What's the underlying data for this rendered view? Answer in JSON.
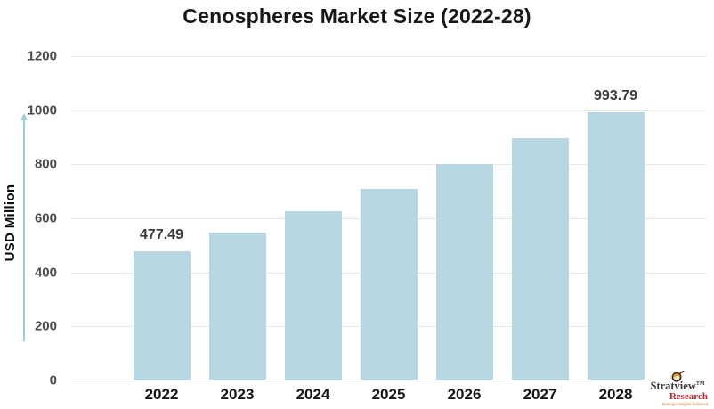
{
  "title": "Cenospheres Market Size (2022-28)",
  "chart_data": {
    "type": "bar",
    "title": "Cenospheres Market Size (2022-28)",
    "categories": [
      "2022",
      "2023",
      "2024",
      "2025",
      "2026",
      "2027",
      "2028"
    ],
    "values": [
      477.49,
      546,
      625,
      710,
      800,
      896,
      993.79
    ],
    "data_labels": [
      "477.49",
      "",
      "",
      "",
      "",
      "",
      "993.79"
    ],
    "xlabel": "",
    "ylabel": "USD Million",
    "ylim": [
      0,
      1200
    ],
    "yticks": [
      0,
      200,
      400,
      600,
      800,
      1000,
      1200
    ],
    "grid": true,
    "legend": "none",
    "colors": {
      "bar": "#b7d7e3",
      "gridline": "#e7e7e7",
      "baseline": "#d6d6d6",
      "arrow": "#9fc9dc",
      "tick_text": "#4a4a4a",
      "category_text": "#161616",
      "data_label_text": "#3a3a3a",
      "title_text": "#171717"
    }
  },
  "logo": {
    "brand": "Stratview",
    "trademark": "TM",
    "sub": "Research",
    "tagline": "Strategic Insights Delivered"
  }
}
